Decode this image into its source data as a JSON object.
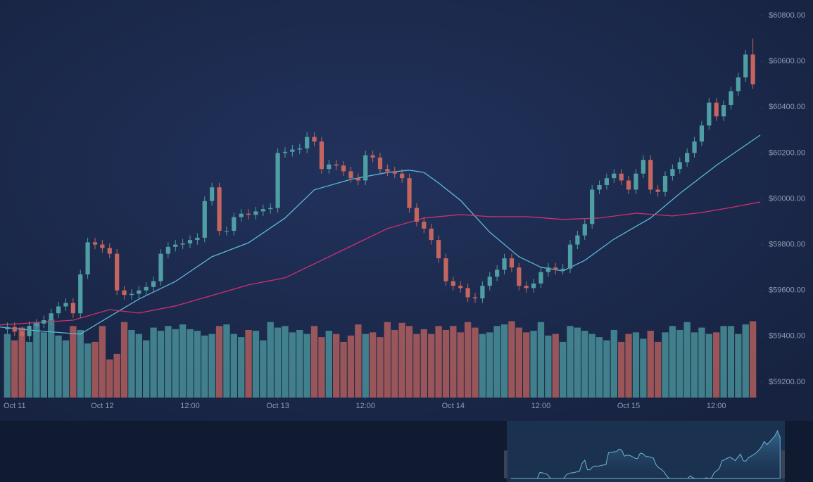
{
  "chart_data": {
    "type": "candlestick",
    "up_color": "#4f9ea3",
    "down_color": "#c4665f",
    "xlim": [
      10,
      114
    ],
    "xticks": [
      {
        "value": 12,
        "label": "Oct 11"
      },
      {
        "value": 24,
        "label": "Oct 12"
      },
      {
        "value": 36,
        "label": "12:00"
      },
      {
        "value": 48,
        "label": "Oct 13"
      },
      {
        "value": 60,
        "label": "12:00"
      },
      {
        "value": 72,
        "label": "Oct 14"
      },
      {
        "value": 84,
        "label": "12:00"
      },
      {
        "value": 96,
        "label": "Oct 15"
      },
      {
        "value": 108,
        "label": "12:00"
      }
    ],
    "ylim": [
      59132,
      60868
    ],
    "yticks": [
      {
        "value": 59200,
        "label": "$59200.00"
      },
      {
        "value": 59400,
        "label": "$59400.00"
      },
      {
        "value": 59600,
        "label": "$59600.00"
      },
      {
        "value": 59800,
        "label": "$59800.00"
      },
      {
        "value": 60000,
        "label": "$60000.00"
      },
      {
        "value": 60200,
        "label": "$60200.00"
      },
      {
        "value": 60400,
        "label": "$60400.00"
      },
      {
        "value": 60600,
        "label": "$60600.00"
      },
      {
        "value": 60800,
        "label": "$60800.00"
      }
    ],
    "y2lim": [
      0,
      500
    ],
    "x": [
      11,
      12,
      13,
      14,
      15,
      16,
      17,
      18,
      19,
      20,
      21,
      22,
      23,
      24,
      25,
      26,
      27,
      28,
      29,
      30,
      31,
      32,
      33,
      34,
      35,
      36,
      37,
      38,
      39,
      40,
      41,
      42,
      43,
      44,
      45,
      46,
      47,
      48,
      49,
      50,
      51,
      52,
      53,
      54,
      55,
      56,
      57,
      58,
      59,
      60,
      61,
      62,
      63,
      64,
      65,
      66,
      67,
      68,
      69,
      70,
      71,
      72,
      73,
      74,
      75,
      76,
      77,
      78,
      79,
      80,
      81,
      82,
      83,
      84,
      85,
      86,
      87,
      88,
      89,
      90,
      91,
      92,
      93,
      94,
      95,
      96,
      97,
      98,
      99,
      100,
      101,
      102,
      103,
      104,
      105,
      106,
      107,
      108,
      109,
      110,
      111,
      112,
      113
    ],
    "open": [
      59430,
      59440,
      59420,
      59400,
      59445,
      59455,
      59470,
      59500,
      59530,
      59545,
      59500,
      59670,
      59810,
      59800,
      59785,
      59760,
      59600,
      59580,
      59585,
      59600,
      59615,
      59640,
      59760,
      59790,
      59800,
      59805,
      59820,
      59830,
      59990,
      60050,
      59860,
      59860,
      59920,
      59935,
      59930,
      59945,
      59955,
      59960,
      60200,
      60205,
      60215,
      60220,
      60270,
      60250,
      60130,
      60150,
      60145,
      60120,
      60090,
      60080,
      60190,
      60180,
      60130,
      60120,
      60110,
      60090,
      59960,
      59900,
      59870,
      59820,
      59740,
      59640,
      59620,
      59610,
      59570,
      59565,
      59620,
      59660,
      59690,
      59740,
      59700,
      59620,
      59610,
      59630,
      59680,
      59700,
      59690,
      59695,
      59800,
      59840,
      59890,
      60040,
      60060,
      60090,
      60110,
      60080,
      60040,
      60110,
      60170,
      60040,
      60030,
      60100,
      60130,
      60160,
      60200,
      60250,
      60320,
      60420,
      60360,
      60410,
      60470,
      60530,
      60630
    ],
    "high": [
      59460,
      59460,
      59440,
      59465,
      59475,
      59490,
      59520,
      59550,
      59565,
      59565,
      59690,
      59830,
      59830,
      59820,
      59805,
      59780,
      59620,
      59605,
      59620,
      59635,
      59660,
      59780,
      59810,
      59820,
      59825,
      59840,
      59850,
      60010,
      60070,
      60070,
      59880,
      59940,
      59955,
      59955,
      59965,
      59975,
      59980,
      60220,
      60225,
      60235,
      60240,
      60290,
      60290,
      60270,
      60170,
      60170,
      60165,
      60140,
      60110,
      60210,
      60210,
      60200,
      60150,
      60140,
      60130,
      60110,
      59980,
      59920,
      59890,
      59840,
      59760,
      59660,
      59640,
      59630,
      59590,
      59640,
      59680,
      59710,
      59760,
      59760,
      59720,
      59640,
      59650,
      59700,
      59720,
      59720,
      59715,
      59820,
      59860,
      59910,
      60060,
      60080,
      60110,
      60130,
      60130,
      60100,
      60130,
      60190,
      60190,
      60060,
      60120,
      60150,
      60180,
      60220,
      60270,
      60340,
      60440,
      60440,
      60430,
      60490,
      60550,
      60650,
      60700
    ],
    "low": [
      59410,
      59400,
      59380,
      59380,
      59425,
      59435,
      59450,
      59480,
      59510,
      59480,
      59480,
      59650,
      59780,
      59765,
      59740,
      59580,
      59560,
      59560,
      59565,
      59580,
      59595,
      59620,
      59740,
      59770,
      59780,
      59785,
      59800,
      59810,
      59970,
      59840,
      59840,
      59840,
      59900,
      59910,
      59910,
      59925,
      59935,
      59940,
      60180,
      60185,
      60195,
      60200,
      60230,
      60110,
      60110,
      60125,
      60100,
      60070,
      60060,
      60060,
      60160,
      60110,
      60100,
      60090,
      60070,
      59940,
      59880,
      59850,
      59800,
      59720,
      59620,
      59600,
      59590,
      59550,
      59545,
      59545,
      59600,
      59640,
      59670,
      59680,
      59600,
      59590,
      59590,
      59610,
      59660,
      59670,
      59670,
      59675,
      59780,
      59820,
      59870,
      60020,
      60040,
      60070,
      60060,
      60020,
      60020,
      60090,
      60020,
      60010,
      60010,
      60080,
      60110,
      60140,
      60180,
      60230,
      60300,
      60340,
      60340,
      60390,
      60450,
      60510,
      60480
    ],
    "close": [
      59440,
      59420,
      59400,
      59445,
      59455,
      59470,
      59500,
      59530,
      59545,
      59500,
      59670,
      59810,
      59800,
      59785,
      59760,
      59600,
      59580,
      59585,
      59600,
      59615,
      59640,
      59760,
      59790,
      59800,
      59805,
      59820,
      59830,
      59990,
      60050,
      59860,
      59860,
      59920,
      59935,
      59930,
      59945,
      59955,
      59960,
      60200,
      60205,
      60215,
      60220,
      60270,
      60250,
      60130,
      60150,
      60145,
      60120,
      60090,
      60080,
      60190,
      60180,
      60130,
      60120,
      60110,
      60090,
      59960,
      59900,
      59870,
      59820,
      59740,
      59640,
      59620,
      59610,
      59570,
      59565,
      59620,
      59660,
      59690,
      59740,
      59700,
      59620,
      59610,
      59630,
      59680,
      59700,
      59690,
      59695,
      59800,
      59840,
      59890,
      60040,
      60060,
      60090,
      60110,
      60080,
      60040,
      60110,
      60170,
      60040,
      60030,
      60100,
      60130,
      60160,
      60200,
      60250,
      60320,
      60420,
      60360,
      60410,
      60470,
      60530,
      60630,
      60500
    ],
    "volume": [
      80,
      72,
      88,
      70,
      95,
      82,
      98,
      78,
      72,
      90,
      85,
      68,
      70,
      90,
      48,
      55,
      95,
      85,
      80,
      72,
      88,
      84,
      90,
      86,
      92,
      86,
      84,
      78,
      80,
      90,
      92,
      80,
      76,
      85,
      84,
      72,
      95,
      88,
      90,
      82,
      85,
      80,
      90,
      76,
      84,
      80,
      70,
      78,
      92,
      80,
      82,
      76,
      95,
      85,
      94,
      90,
      80,
      86,
      80,
      90,
      85,
      90,
      82,
      95,
      88,
      80,
      82,
      90,
      92,
      96,
      88,
      82,
      84,
      95,
      78,
      80,
      70,
      90,
      88,
      84,
      80,
      76,
      72,
      85,
      70,
      80,
      82,
      74,
      84,
      70,
      82,
      90,
      85,
      95,
      82,
      88,
      80,
      82,
      90,
      90,
      80,
      92,
      96
    ],
    "series": [
      {
        "color": "#5bb8d6",
        "x": [
          10,
          15,
          21,
          25,
          29,
          34,
          39,
          44,
          49,
          53,
          58,
          63,
          66,
          68,
          70,
          73,
          77,
          81,
          84,
          87,
          90,
          94,
          99,
          103,
          108,
          114
        ],
        "values": [
          59440,
          59424,
          59409,
          59486,
          59562,
          59639,
          59747,
          59808,
          59916,
          60039,
          60085,
          60115,
          60125,
          60115,
          60069,
          59993,
          59854,
          59747,
          59701,
          59685,
          59731,
          59824,
          59916,
          60023,
          60146,
          60278
        ]
      },
      {
        "color": "#d0306f",
        "x": [
          10,
          20,
          25,
          29,
          34,
          39,
          44,
          49,
          53,
          58,
          63,
          68,
          73,
          77,
          82,
          87,
          92,
          97,
          102,
          106,
          110,
          114
        ],
        "values": [
          59449,
          59470,
          59516,
          59501,
          59532,
          59578,
          59624,
          59655,
          59716,
          59793,
          59870,
          59916,
          59931,
          59922,
          59922,
          59910,
          59916,
          59937,
          59925,
          59940,
          59962,
          59986
        ]
      }
    ]
  }
}
